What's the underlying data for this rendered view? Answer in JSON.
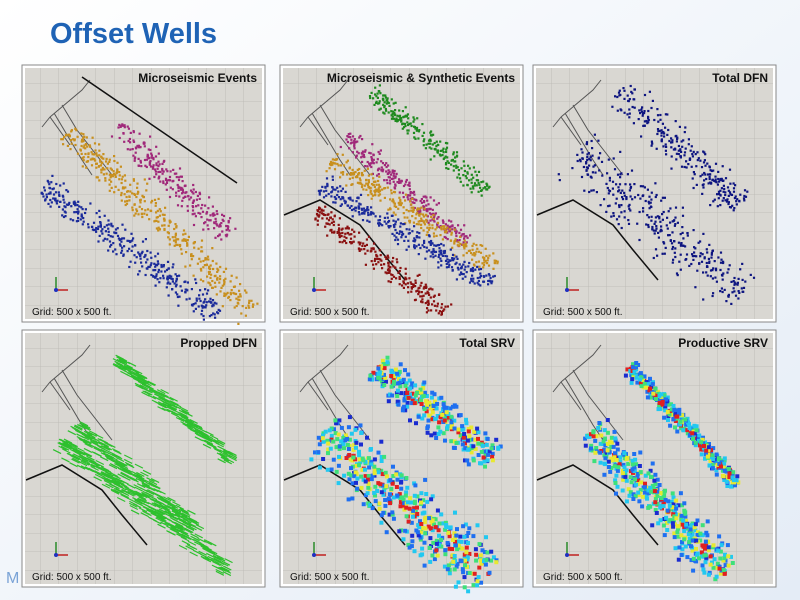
{
  "header": {
    "title": "Offset Wells"
  },
  "panels": [
    {
      "title": "Microseismic Events",
      "note": "Grid: 500 x 500 ft."
    },
    {
      "title": "Microseismic & Synthetic Events",
      "note": "Grid: 500 x 500 ft."
    },
    {
      "title": "Total DFN",
      "note": "Grid: 500 x 500 ft."
    },
    {
      "title": "Propped DFN",
      "note": "Grid: 500 x 500 ft."
    },
    {
      "title": "Total SRV",
      "note": "Grid: 500 x 500 ft."
    },
    {
      "title": "Productive SRV",
      "note": "Grid: 500 x 500 ft."
    }
  ],
  "footer": {
    "text": "M"
  }
}
